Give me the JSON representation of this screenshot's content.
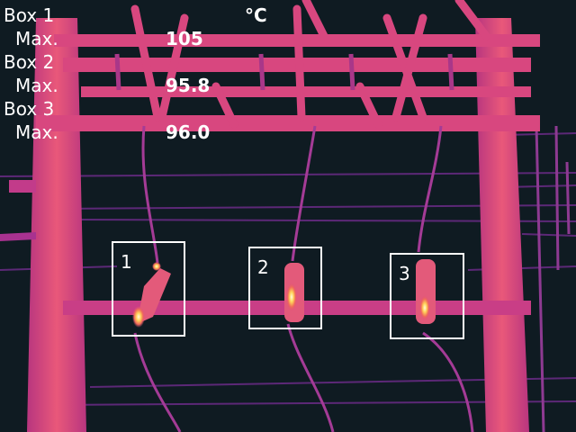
{
  "unit": "°C",
  "measurements": [
    {
      "box_label": "Box 1",
      "max_label": "Max.",
      "max_value": "105"
    },
    {
      "box_label": "Box 2",
      "max_label": "Max.",
      "max_value": "95.8"
    },
    {
      "box_label": "Box 3",
      "max_label": "Max.",
      "max_value": "96.0"
    }
  ],
  "boxes": [
    {
      "number": "1"
    },
    {
      "number": "2"
    },
    {
      "number": "3"
    }
  ],
  "colors": {
    "structure_hot": "#e8527e",
    "structure_mid": "#c23b8a",
    "wire": "#9b3fa0",
    "background": "#0f1b22",
    "hotspot": "#fff3b0"
  }
}
